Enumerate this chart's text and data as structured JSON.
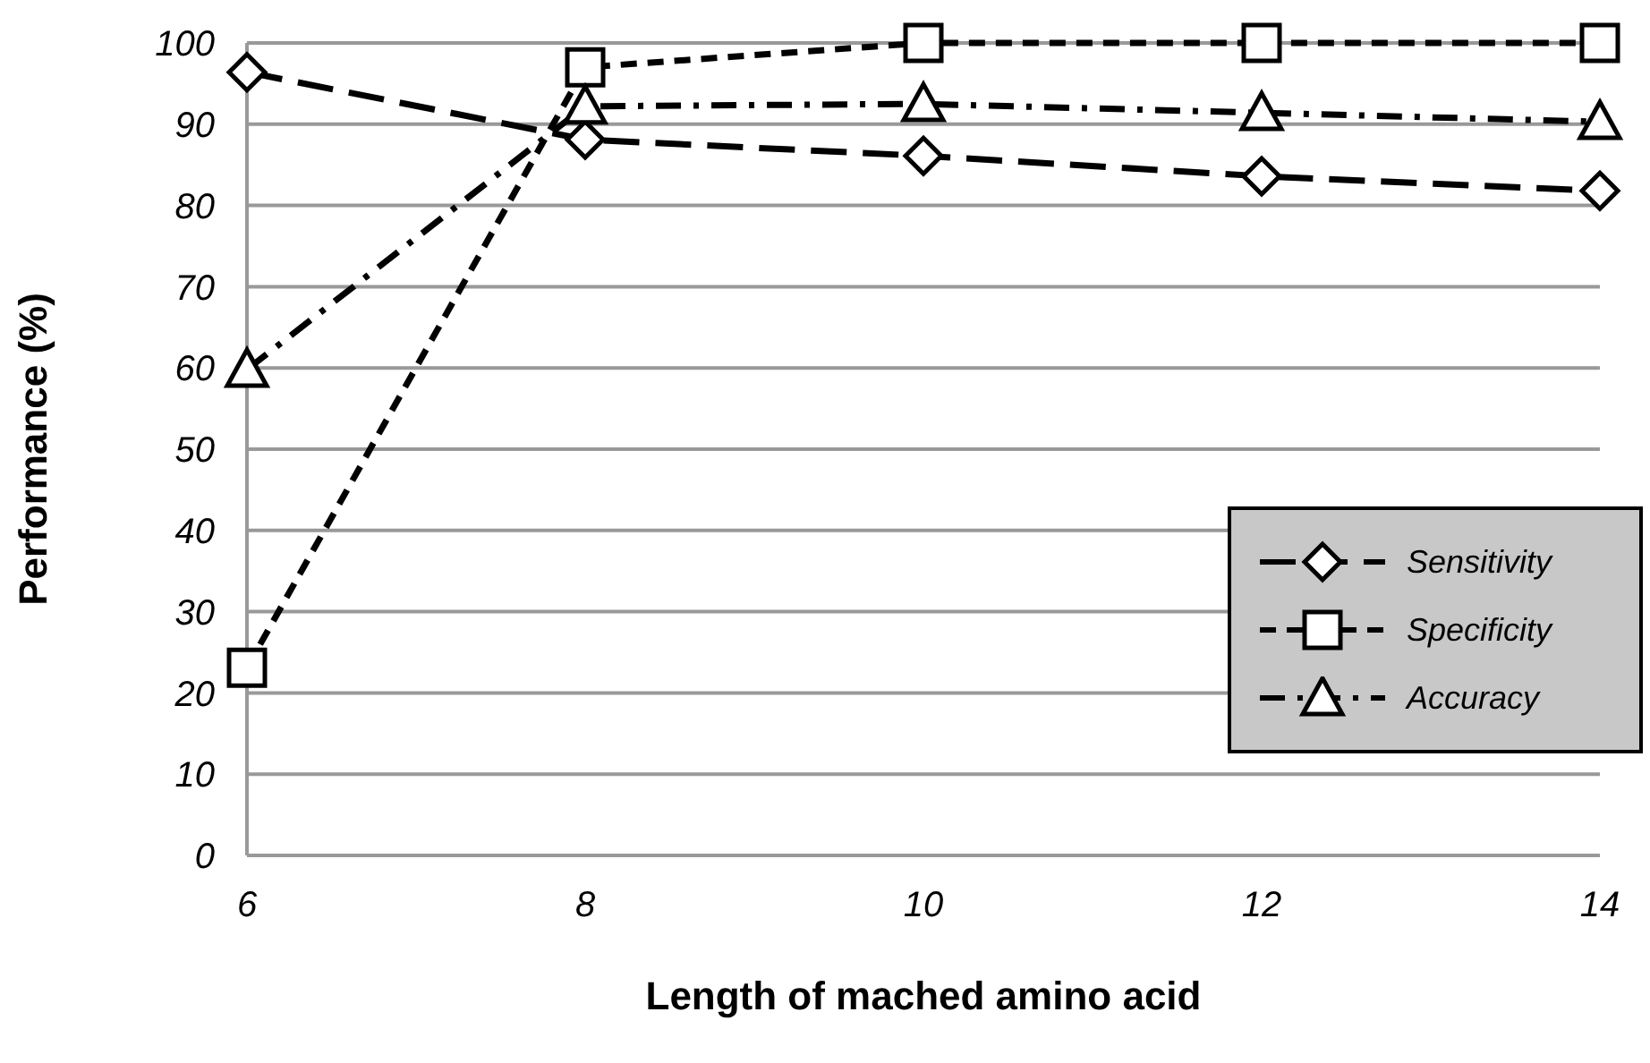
{
  "chart_data": {
    "type": "line",
    "xlabel": "Length of mached amino acid",
    "ylabel": "Performance (%)",
    "x": [
      6,
      8,
      10,
      12,
      14
    ],
    "series": [
      {
        "name": "Sensitivity",
        "color": "#000000",
        "values": [
          96.4,
          88.1,
          86.1,
          83.6,
          81.8
        ],
        "marker": "diamond",
        "line_style": "longdash"
      },
      {
        "name": "Specificity",
        "color": "#000000",
        "values": [
          23.1,
          97,
          100,
          100,
          100
        ],
        "marker": "square",
        "line_style": "dashed"
      },
      {
        "name": "Accuracy",
        "color": "#000000",
        "values": [
          59.8,
          92.2,
          92.5,
          91.4,
          90.3
        ],
        "marker": "triangle",
        "line_style": "dashdot"
      }
    ],
    "xlim": [
      6,
      14
    ],
    "xticks": [
      6,
      8,
      10,
      12,
      14
    ],
    "ylim": [
      0,
      100
    ],
    "yticks": [
      0,
      10,
      20,
      30,
      40,
      50,
      60,
      70,
      80,
      90,
      100
    ],
    "grid": "y",
    "legend": "bottom right"
  }
}
